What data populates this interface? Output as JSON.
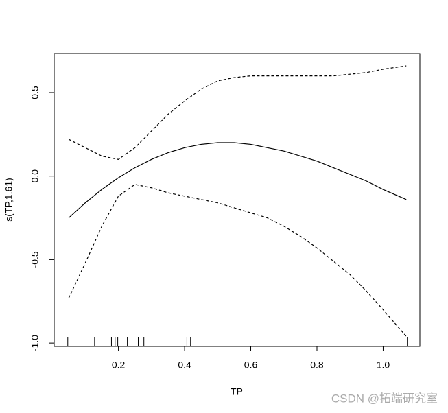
{
  "chart_data": {
    "type": "line",
    "xlabel": "TP",
    "ylabel": "s(TP,1.61)",
    "x": [
      0.05,
      0.1,
      0.15,
      0.2,
      0.25,
      0.3,
      0.35,
      0.4,
      0.45,
      0.5,
      0.55,
      0.6,
      0.65,
      0.7,
      0.75,
      0.8,
      0.85,
      0.9,
      0.95,
      1.0,
      1.07
    ],
    "series": [
      {
        "color": "#000000",
        "dashed": false,
        "values": [
          -0.25,
          -0.16,
          -0.08,
          -0.01,
          0.05,
          0.1,
          0.14,
          0.17,
          0.19,
          0.2,
          0.2,
          0.19,
          0.17,
          0.15,
          0.12,
          0.09,
          0.05,
          0.01,
          -0.03,
          -0.08,
          -0.14
        ]
      },
      {
        "color": "#000000",
        "dashed": true,
        "values": [
          0.22,
          0.17,
          0.12,
          0.1,
          0.17,
          0.27,
          0.37,
          0.45,
          0.52,
          0.57,
          0.59,
          0.6,
          0.6,
          0.6,
          0.6,
          0.6,
          0.6,
          0.61,
          0.62,
          0.64,
          0.66
        ]
      },
      {
        "color": "#000000",
        "dashed": true,
        "values": [
          -0.73,
          -0.52,
          -0.3,
          -0.12,
          -0.05,
          -0.07,
          -0.1,
          -0.12,
          -0.14,
          -0.16,
          -0.19,
          -0.22,
          -0.25,
          -0.3,
          -0.36,
          -0.43,
          -0.51,
          -0.59,
          -0.69,
          -0.8,
          -0.96
        ]
      }
    ],
    "rug": [
      0.047,
      0.128,
      0.179,
      0.19,
      0.198,
      0.227,
      0.26,
      0.277,
      0.407,
      0.418,
      1.073
    ],
    "xlim": [
      0.006,
      1.111
    ],
    "xticks": [
      0.2,
      0.4,
      0.6,
      0.8,
      {
        "value": 1.0,
        "label": "1.0"
      }
    ],
    "ylim": [
      -1.02,
      0.734
    ],
    "yticks": [
      {
        "value": -1.0,
        "label": "-1.0"
      },
      -0.5,
      {
        "value": 0.0,
        "label": "0.0"
      },
      0.5
    ],
    "watermark": "CSDN @拓端研究室"
  }
}
